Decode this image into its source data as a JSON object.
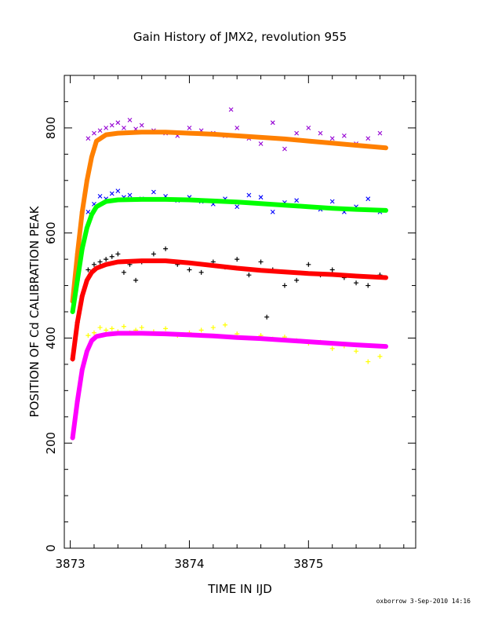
{
  "chart_data": {
    "type": "scatter",
    "title": "Gain History of JMX2, revolution 955",
    "xlabel": "TIME IN IJD",
    "ylabel": "POSITION OF Cd CALIBRATION PEAK",
    "xlim": [
      3872.95,
      3875.9
    ],
    "ylim": [
      0,
      900
    ],
    "x_ticks": [
      3873,
      3874,
      3875
    ],
    "y_ticks": [
      0,
      200,
      400,
      600,
      800
    ],
    "grid": false,
    "series": [
      {
        "kind": "fit",
        "color": "#ff8000",
        "marker": "+",
        "marker_color": "#ff8000",
        "x": [
          3873.02,
          3873.06,
          3873.1,
          3873.14,
          3873.18,
          3873.22,
          3873.3,
          3873.4,
          3873.6,
          3873.8,
          3874.0,
          3874.2,
          3874.4,
          3874.6,
          3874.8,
          3875.0,
          3875.2,
          3875.4,
          3875.65
        ],
        "y": [
          470,
          560,
          640,
          700,
          745,
          775,
          787,
          790,
          792,
          792,
          790,
          788,
          785,
          782,
          779,
          775,
          771,
          767,
          762
        ]
      },
      {
        "kind": "points",
        "color": "#9400d3",
        "marker": "x",
        "x": [
          3873.15,
          3873.2,
          3873.25,
          3873.3,
          3873.35,
          3873.4,
          3873.45,
          3873.5,
          3873.55,
          3873.6,
          3873.7,
          3873.8,
          3873.9,
          3874.0,
          3874.1,
          3874.2,
          3874.3,
          3874.35,
          3874.4,
          3874.5,
          3874.6,
          3874.7,
          3874.8,
          3874.9,
          3875.0,
          3875.1,
          3875.2,
          3875.3,
          3875.4,
          3875.5,
          3875.6
        ],
        "y": [
          780,
          790,
          795,
          800,
          805,
          810,
          800,
          815,
          798,
          805,
          795,
          790,
          785,
          800,
          795,
          790,
          785,
          835,
          800,
          780,
          770,
          810,
          760,
          790,
          800,
          790,
          780,
          785,
          770,
          780,
          790
        ]
      },
      {
        "kind": "fit",
        "color": "#00ff00",
        "marker": "+",
        "marker_color": "#00ff00",
        "x": [
          3873.02,
          3873.06,
          3873.1,
          3873.14,
          3873.18,
          3873.22,
          3873.3,
          3873.4,
          3873.6,
          3873.8,
          3874.0,
          3874.2,
          3874.4,
          3874.6,
          3874.8,
          3875.0,
          3875.2,
          3875.4,
          3875.65
        ],
        "y": [
          450,
          510,
          570,
          610,
          635,
          650,
          660,
          663,
          664,
          664,
          663,
          661,
          659,
          656,
          653,
          650,
          647,
          645,
          643
        ]
      },
      {
        "kind": "points",
        "color": "#0000ff",
        "marker": "x",
        "x": [
          3873.15,
          3873.2,
          3873.25,
          3873.3,
          3873.35,
          3873.4,
          3873.45,
          3873.5,
          3873.6,
          3873.7,
          3873.8,
          3873.9,
          3874.0,
          3874.1,
          3874.2,
          3874.3,
          3874.4,
          3874.5,
          3874.6,
          3874.7,
          3874.8,
          3874.9,
          3875.0,
          3875.1,
          3875.2,
          3875.3,
          3875.4,
          3875.5,
          3875.6
        ],
        "y": [
          640,
          655,
          670,
          665,
          675,
          680,
          668,
          672,
          665,
          678,
          670,
          662,
          668,
          660,
          655,
          665,
          650,
          672,
          668,
          640,
          658,
          662,
          650,
          645,
          660,
          640,
          650,
          665,
          640
        ]
      },
      {
        "kind": "fit",
        "color": "#ff0000",
        "marker": "+",
        "marker_color": "#990000",
        "x": [
          3873.02,
          3873.06,
          3873.1,
          3873.14,
          3873.18,
          3873.22,
          3873.3,
          3873.4,
          3873.6,
          3873.8,
          3874.0,
          3874.2,
          3874.4,
          3874.6,
          3874.8,
          3875.0,
          3875.2,
          3875.4,
          3875.65
        ],
        "y": [
          360,
          430,
          480,
          510,
          525,
          533,
          540,
          545,
          547,
          547,
          543,
          538,
          533,
          529,
          526,
          523,
          521,
          518,
          515
        ]
      },
      {
        "kind": "points",
        "color": "#000000",
        "marker": "+",
        "x": [
          3873.15,
          3873.2,
          3873.25,
          3873.3,
          3873.35,
          3873.4,
          3873.45,
          3873.5,
          3873.55,
          3873.6,
          3873.7,
          3873.8,
          3873.9,
          3874.0,
          3874.1,
          3874.2,
          3874.3,
          3874.4,
          3874.5,
          3874.6,
          3874.65,
          3874.7,
          3874.8,
          3874.9,
          3875.0,
          3875.1,
          3875.2,
          3875.3,
          3875.4,
          3875.5,
          3875.6
        ],
        "y": [
          530,
          540,
          545,
          550,
          555,
          560,
          525,
          540,
          510,
          545,
          560,
          570,
          540,
          530,
          525,
          545,
          535,
          550,
          520,
          545,
          440,
          530,
          500,
          510,
          540,
          520,
          530,
          515,
          505,
          500,
          520
        ]
      },
      {
        "kind": "fit",
        "color": "#ff00ff",
        "marker": "+",
        "marker_color": "#ff00ff",
        "x": [
          3873.02,
          3873.06,
          3873.1,
          3873.14,
          3873.18,
          3873.22,
          3873.3,
          3873.4,
          3873.6,
          3873.8,
          3874.0,
          3874.2,
          3874.4,
          3874.6,
          3874.8,
          3875.0,
          3875.2,
          3875.4,
          3875.65
        ],
        "y": [
          210,
          280,
          340,
          375,
          395,
          403,
          407,
          409,
          409,
          408,
          406,
          404,
          401,
          399,
          396,
          393,
          390,
          387,
          384
        ]
      },
      {
        "kind": "points",
        "color": "#ffff00",
        "marker": "+",
        "x": [
          3873.15,
          3873.2,
          3873.25,
          3873.3,
          3873.35,
          3873.4,
          3873.45,
          3873.5,
          3873.55,
          3873.6,
          3873.7,
          3873.8,
          3873.9,
          3874.0,
          3874.1,
          3874.2,
          3874.3,
          3874.4,
          3874.5,
          3874.6,
          3874.7,
          3874.8,
          3874.9,
          3875.0,
          3875.1,
          3875.2,
          3875.3,
          3875.4,
          3875.5,
          3875.6
        ],
        "y": [
          405,
          410,
          420,
          415,
          418,
          412,
          422,
          410,
          415,
          420,
          412,
          418,
          405,
          410,
          415,
          420,
          425,
          408,
          400,
          405,
          398,
          402,
          395,
          390,
          392,
          380,
          385,
          375,
          355,
          365
        ]
      }
    ]
  },
  "footer": "oxborrow   3-Sep-2010 14:16"
}
